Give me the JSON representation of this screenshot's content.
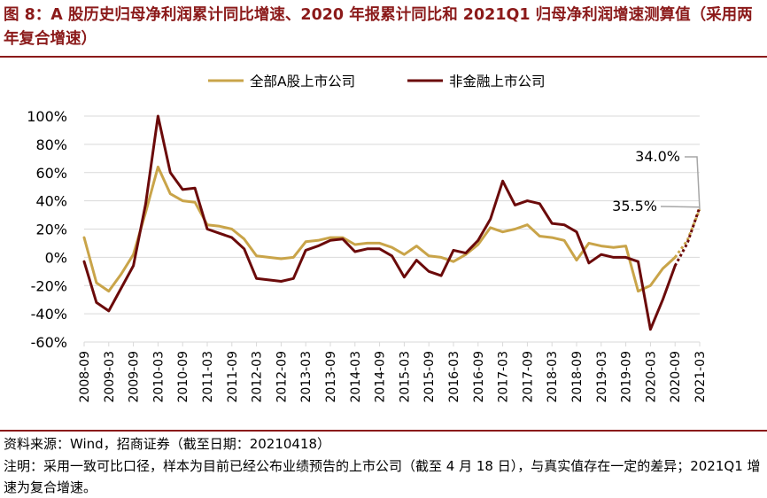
{
  "header": {
    "title": "图 8：A 股历史归母净利润累计同比增速、2020 年报累计同比和 2021Q1 归母净利润增速测算值（采用两年复合增速）"
  },
  "footer": {
    "source": "资料来源：Wind，招商证券（截至日期：20210418）",
    "note": "注明：采用一致可比口径，样本为目前已经公布业绩预告的上市公司（截至 4 月 18 日），与真实值存在一定的差异；2021Q1 增速为复合增速。"
  },
  "colors": {
    "all_a": "#c9a449",
    "non_fin": "#6b0a0a",
    "grid": "#d9d9d9",
    "title": "#8b1a1a",
    "annotation_line": "#a6a6a6"
  },
  "chart_data": {
    "type": "line",
    "ylim": [
      -60,
      100
    ],
    "yticks": [
      -60,
      -40,
      -20,
      0,
      20,
      40,
      60,
      80,
      100
    ],
    "ytick_labels": [
      "-60%",
      "-40%",
      "-20%",
      "0%",
      "20%",
      "40%",
      "60%",
      "80%",
      "100%"
    ],
    "grid": "horizontal",
    "legend_position": "top-center",
    "x": [
      "2008-09",
      "2008-12",
      "2009-03",
      "2009-06",
      "2009-09",
      "2009-12",
      "2010-03",
      "2010-06",
      "2010-09",
      "2010-12",
      "2011-03",
      "2011-06",
      "2011-09",
      "2011-12",
      "2012-03",
      "2012-06",
      "2012-09",
      "2012-12",
      "2013-03",
      "2013-06",
      "2013-09",
      "2013-12",
      "2014-03",
      "2014-06",
      "2014-09",
      "2014-12",
      "2015-03",
      "2015-06",
      "2015-09",
      "2015-12",
      "2016-03",
      "2016-06",
      "2016-09",
      "2016-12",
      "2017-03",
      "2017-06",
      "2017-09",
      "2017-12",
      "2018-03",
      "2018-06",
      "2018-09",
      "2018-12",
      "2019-03",
      "2019-06",
      "2019-09",
      "2019-12",
      "2020-03",
      "2020-06",
      "2020-09",
      "2020-12",
      "2021-03"
    ],
    "xtick_labels": [
      "2008-09",
      "2009-03",
      "2009-09",
      "2010-03",
      "2010-09",
      "2011-03",
      "2011-09",
      "2012-03",
      "2012-09",
      "2013-03",
      "2013-09",
      "2014-03",
      "2014-09",
      "2015-03",
      "2015-09",
      "2016-03",
      "2016-09",
      "2017-03",
      "2017-09",
      "2018-03",
      "2018-09",
      "2019-03",
      "2019-09",
      "2020-03",
      "2020-09",
      "2021-03"
    ],
    "series": [
      {
        "name": "全部A股上市公司",
        "color": "#c9a449",
        "values": [
          14,
          -18,
          -24,
          -12,
          2,
          32,
          64,
          45,
          40,
          39,
          23,
          22,
          20,
          13,
          1,
          0,
          -1,
          0,
          11,
          12,
          14,
          14,
          9,
          10,
          10,
          7,
          2,
          8,
          1,
          0,
          -3,
          2,
          9,
          21,
          18,
          20,
          23,
          15,
          14,
          12,
          -2,
          10,
          8,
          7,
          8,
          -24,
          -20,
          -8,
          0,
          12,
          34.0
        ],
        "dashed_from_index": 48
      },
      {
        "name": "非金融上市公司",
        "color": "#6b0a0a",
        "values": [
          -3,
          -32,
          -38,
          -22,
          -6,
          38,
          100,
          60,
          48,
          49,
          20,
          17,
          14,
          6,
          -15,
          -16,
          -17,
          -15,
          5,
          8,
          12,
          13,
          4,
          6,
          6,
          1,
          -14,
          -2,
          -10,
          -13,
          5,
          3,
          12,
          27,
          54,
          37,
          40,
          38,
          24,
          23,
          18,
          -4,
          2,
          0,
          0,
          -3,
          -51,
          -30,
          -6,
          10,
          35.5
        ],
        "dashed_from_index": 48
      }
    ],
    "annotations": [
      {
        "text": "34.0%",
        "series_index": 0,
        "point_index": 50
      },
      {
        "text": "35.5%",
        "series_index": 1,
        "point_index": 50
      }
    ]
  }
}
